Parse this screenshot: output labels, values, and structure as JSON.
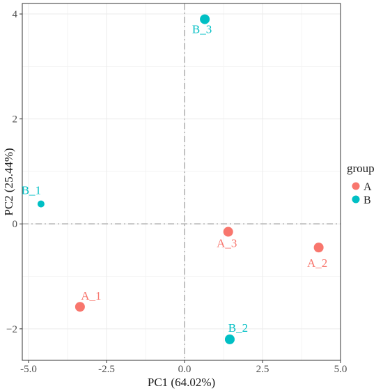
{
  "chart_data": {
    "type": "scatter",
    "xlabel": "PC1 (64.02%)",
    "ylabel": "PC2 (25.44%)",
    "xlim": [
      -5.2,
      5.0
    ],
    "ylim": [
      -2.6,
      4.2
    ],
    "xticks": [
      -5.0,
      -2.5,
      0.0,
      2.5,
      5.0
    ],
    "xtick_labels": [
      "-5.0",
      "-2.5",
      "0.0",
      "2.5",
      "5.0"
    ],
    "yticks": [
      -2,
      0,
      2,
      4
    ],
    "ytick_labels": [
      "−2",
      "0",
      "2",
      "4"
    ],
    "grid": true,
    "reference_lines": {
      "x": 0,
      "y": 0
    },
    "legend": {
      "title": "group",
      "position": "right",
      "entries": [
        {
          "label": "A",
          "color": "#F8766D"
        },
        {
          "label": "B",
          "color": "#00BFC4"
        }
      ]
    },
    "points": [
      {
        "label": "A_1",
        "group": "A",
        "x": -3.35,
        "y": -1.58,
        "size": 3
      },
      {
        "label": "A_2",
        "group": "A",
        "x": 4.3,
        "y": -0.45,
        "size": 3
      },
      {
        "label": "A_3",
        "group": "A",
        "x": 1.4,
        "y": -0.15,
        "size": 3
      },
      {
        "label": "B_1",
        "group": "B",
        "x": -4.6,
        "y": 0.38,
        "size": 2
      },
      {
        "label": "B_2",
        "group": "B",
        "x": 1.45,
        "y": -2.2,
        "size": 3
      },
      {
        "label": "B_3",
        "group": "B",
        "x": 0.65,
        "y": 3.9,
        "size": 3
      }
    ]
  }
}
